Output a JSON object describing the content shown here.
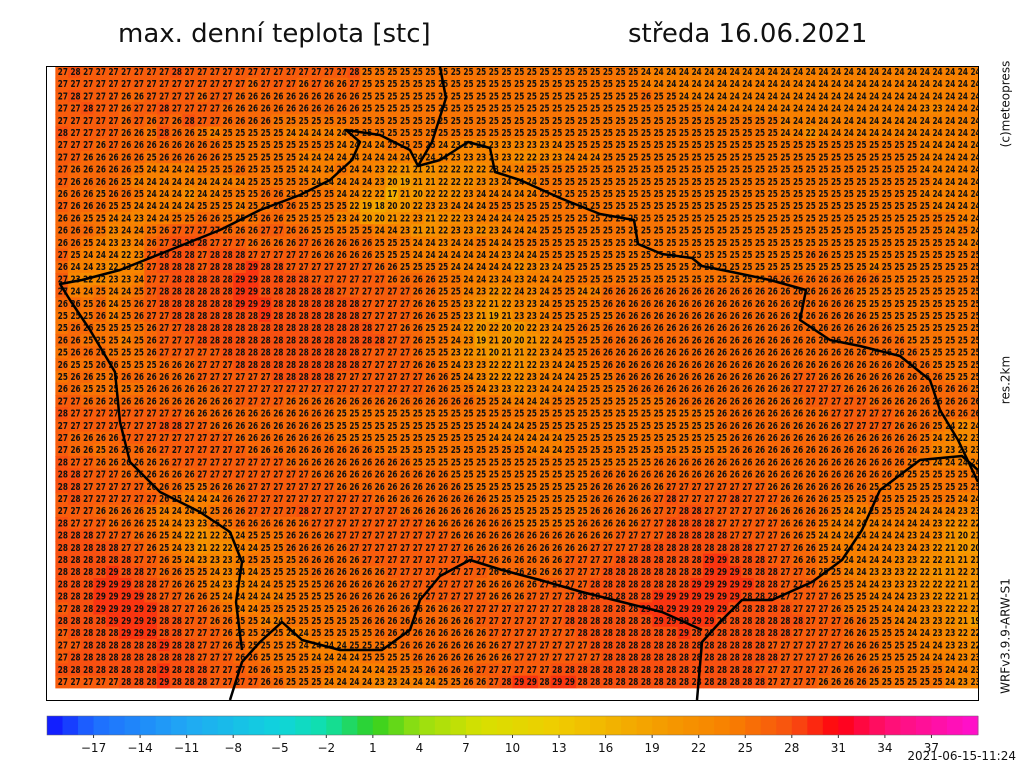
{
  "header": {
    "title": "max. denní teplota [stc]",
    "date": "středa 16.06.2021"
  },
  "side_labels": {
    "copyright": "(c)meteopress",
    "resolution": "res.2km",
    "model": "WRFv3.9.9-ARW-S1"
  },
  "timestamp": "2021-06-15-11:24",
  "colorbar": {
    "lim": [
      -20,
      40
    ],
    "ticks": [
      {
        "value": -17,
        "label": "−17"
      },
      {
        "value": -14,
        "label": "−14"
      },
      {
        "value": -11,
        "label": "−11"
      },
      {
        "value": -8,
        "label": "−8"
      },
      {
        "value": -5,
        "label": "−5"
      },
      {
        "value": -2,
        "label": "−2"
      },
      1,
      4,
      7,
      10,
      13,
      16,
      19,
      22,
      25,
      28,
      31,
      34,
      37
    ],
    "stops": [
      {
        "value": -20,
        "color": "#1010ff"
      },
      {
        "value": -17,
        "color": "#1e6cff"
      },
      {
        "value": -11,
        "color": "#20a8f4"
      },
      {
        "value": -5,
        "color": "#10d4dc"
      },
      {
        "value": -2,
        "color": "#10e0a8"
      },
      {
        "value": 1,
        "color": "#30d020"
      },
      {
        "value": 4,
        "color": "#98e010"
      },
      {
        "value": 8,
        "color": "#d8e000"
      },
      {
        "value": 13,
        "color": "#f0cc00"
      },
      {
        "value": 19,
        "color": "#f4a000"
      },
      {
        "value": 24,
        "color": "#f88000"
      },
      {
        "value": 28,
        "color": "#f85010"
      },
      {
        "value": 31,
        "color": "#ff0010"
      },
      {
        "value": 34,
        "color": "#ff1070"
      },
      {
        "value": 40,
        "color": "#ff10d0"
      }
    ]
  },
  "map": {
    "rows": [
      "27 28 27 27 27 27 27 27 27 28 27 27 27 27 27 27 27 27 27 27 27 27 27 28 25 25 25 25 25 25 25 25 25 25 25 25 25 25 25 25 25 25 25 25 25 25 24 24 24 24 24 24 24 24 24 24 24 24 24 24 24 24 24 24 24 24 24 24 24 24 24 24 24",
      "27 27 27 27 27 27 27 27 27 27 27 27 27 27 27 26 27 27 27 26 27 26 26 27 25 25 25 25 25 25 25 25 25 25 25 25 25 25 25 25 25 25 25 25 25 25 24 24 24 24 24 24 24 24 24 24 24 24 24 24 24 24 24 24 24 24 24 24 24 24 24 24 24",
      "27 28 27 27 27 26 26 27 27 27 27 26 27 27 26 26 26 26 26 26 26 26 26 26 25 25 25 25 25 25 25 25 25 25 25 25 25 25 25 25 25 25 25 25 25 25 26 25 25 24 24 24 24 24 24 24 24 24 24 24 24 24 24 24 24 24 24 24 24 24 24 24 24",
      "27 27 28 27 27 26 27 27 28 27 27 27 27 26 26 26 26 26 26 26 26 26 26 26 25 25 25 25 25 25 25 25 25 25 25 25 25 25 25 25 25 25 25 25 25 25 25 25 25 25 25 24 24 24 24 24 24 24 24 24 24 24 24 24 24 24 24 24 23 23 24 24 24",
      "27 27 27 27 27 26 27 26 27 26 28 27 27 26 26 26 26 25 25 25 25 25 25 25 25 25 25 25 25 25 25 25 25 25 25 25 25 25 25 25 25 25 25 25 25 25 25 25 25 25 25 25 25 25 25 25 25 24 24 24 24 24 24 24 24 24 24 24 24 24 24 24 24",
      "28 27 27 27 27 26 26 25 28 26 26 25 24 25 25 25 25 25 24 24 24 24 24 25 25 25 25 25 25 25 25 25 25 25 25 25 25 25 25 25 25 25 25 25 25 25 25 25 25 25 25 25 25 25 25 25 25 24 24 22 24 24 24 24 24 24 24 24 24 24 24 24 24",
      "27 27 27 26 27 26 26 26 26 26 26 26 26 25 25 25 25 25 25 25 25 25 24 24 24 24 25 25 25 25 24 23 23 23 23 23 23 23 23 24 25 25 25 25 25 25 25 25 25 25 25 25 25 25 25 25 25 25 25 25 25 25 25 25 25 25 25 25 24 24 24 24 24",
      "27 27 26 26 26 26 26 25 26 26 26 26 26 25 25 25 25 25 25 24 24 24 24 24 24 24 24 24 24 24 24 23 23 23 23 23 22 22 23 23 24 24 24 25 25 25 25 25 25 25 25 25 25 25 25 25 25 25 25 25 25 25 25 25 25 25 25 25 24 24 24 24 24",
      "27 26 26 26 26 26 25 24 24 24 24 25 25 25 26 25 25 25 25 24 24 24 25 24 24 23 22 21 21 21 22 22 22 22 23 24 24 25 25 25 25 25 25 25 25 25 25 25 25 25 25 25 25 25 25 25 25 25 25 25 25 25 25 25 25 25 25 25 24 24 24 24 24",
      "27 26 26 26 26 25 24 24 24 24 24 24 24 24 24 25 25 25 25 25 24 24 24 24 24 23 20 19 21 21 22 22 22 23 23 24 24 24 25 25 25 25 25 25 25 25 25 25 25 25 25 25 25 25 25 25 25 25 25 25 25 25 25 25 25 25 25 25 25 24 24 24 24",
      "26 26 26 25 26 26 25 24 24 24 22 24 24 25 25 25 26 26 25 25 25 25 24 24 22 22 17 21 20 22 22 22 23 24 24 24 24 24 25 25 25 25 25 25 25 25 25 25 25 25 25 25 25 25 25 25 25 25 25 25 25 25 25 25 25 25 25 25 24 24 24 24 24",
      "27 26 26 26 25 25 24 24 24 24 24 25 25 25 24 25 25 26 26 25 25 25 25 22 19 18 20 20 22 23 23 24 24 24 25 25 25 25 25 25 25 25 25 25 25 25 25 25 25 25 25 25 25 25 25 25 25 25 25 25 25 25 25 25 25 25 25 25 25 24 24 24 24",
      "26 26 25 25 24 24 23 24 24 25 25 26 26 25 25 25 26 26 25 25 25 25 23 24 20 20 21 22 23 21 22 22 23 24 24 24 24 25 25 25 25 25 25 25 25 25 25 25 25 25 25 25 25 25 25 25 25 25 25 25 25 25 25 25 25 25 25 25 25 25 25 24 24",
      "26 26 26 25 23 24 24 25 26 27 27 27 27 26 26 26 27 27 26 26 25 25 25 25 25 24 24 23 21 21 22 23 23 22 23 24 24 24 25 25 25 25 25 25 25 25 25 25 25 25 25 25 25 25 25 25 25 25 25 25 25 25 25 25 25 25 25 25 25 25 24 25 24",
      "26 26 25 24 23 23 24 26 27 28 28 28 27 27 27 26 26 26 26 27 26 26 26 26 26 25 25 25 24 24 23 24 24 25 24 24 25 25 25 25 25 25 25 25 25 25 25 25 25 25 25 25 25 25 25 25 25 25 25 25 25 25 25 25 25 25 25 25 25 25 25 24 24",
      "27 25 24 24 24 22 23 27 28 28 28 27 28 28 28 27 27 27 27 27 26 26 26 26 26 25 25 25 24 24 24 24 24 24 24 23 24 24 25 25 25 25 25 25 25 25 25 25 25 25 25 25 25 25 25 25 25 25 25 26 26 25 25 25 25 25 25 25 25 25 25 25 25",
      "26 24 24 23 22 23 23 27 28 28 28 27 28 28 28 29 28 28 27 27 27 27 27 27 27 26 26 25 25 25 25 24 24 24 24 24 22 23 23 24 25 25 25 25 25 25 25 25 25 25 25 25 25 25 25 25 25 25 25 25 25 25 25 25 24 25 25 25 25 25 25 25 25",
      "27 23 22 22 23 23 24 27 27 28 28 28 28 28 29 29 28 28 28 28 27 27 27 27 27 27 26 26 26 26 25 25 24 24 23 24 23 24 24 24 25 25 25 25 25 25 25 25 25 25 25 25 25 25 25 25 26 26 26 26 26 26 26 26 26 25 25 25 25 25 25 25 25",
      "27 24 24 25 24 24 25 27 28 28 28 28 28 28 29 29 28 28 28 28 28 28 27 27 27 27 27 27 26 26 25 25 24 23 22 22 24 23 24 25 25 24 24 26 26 26 26 26 26 26 26 26 26 26 26 26 26 26 26 26 26 26 26 25 25 25 25 25 25 25 25 25 25",
      "26 26 25 26 24 25 26 27 28 28 28 28 28 28 29 29 29 28 28 28 28 28 28 28 27 27 27 27 26 26 25 25 23 22 21 22 23 23 24 25 25 25 25 26 26 26 26 26 26 26 26 26 26 26 26 26 26 26 26 26 26 26 26 25 25 25 25 25 25 25 25 25 25",
      "25 25 25 26 24 25 26 27 27 28 28 28 28 28 28 28 29 28 28 28 28 28 28 28 27 27 27 27 26 26 25 25 23 21 19 21 23 23 24 25 25 25 25 25 26 26 26 26 26 26 26 26 26 26 26 26 26 26 26 26 26 26 26 26 25 25 25 25 25 25 25 25 25",
      "25 26 26 25 25 25 25 26 27 27 28 28 28 28 28 28 28 28 28 28 28 28 28 28 28 27 27 26 26 25 25 24 22 20 22 20 20 22 23 24 25 26 25 26 26 26 26 26 26 26 26 26 26 26 26 26 26 26 26 26 26 26 26 26 26 26 25 25 25 25 25 25 25",
      "26 26 25 25 25 24 25 26 27 27 27 28 28 28 28 28 28 28 28 28 28 28 28 28 28 28 27 27 26 25 25 24 23 19 21 20 20 21 22 24 25 25 25 26 26 26 26 26 26 26 26 26 26 26 26 26 26 26 26 26 26 26 26 26 26 26 26 25 25 25 25 25 25",
      "25 26 26 26 25 25 25 26 27 27 27 27 27 28 28 28 28 28 28 28 28 28 28 28 27 27 27 27 26 25 25 23 22 21 20 21 21 22 23 24 25 25 26 26 26 26 26 26 26 26 26 26 26 26 26 26 26 26 26 26 26 26 26 26 26 26 26 26 25 25 25 25 25",
      "26 25 25 26 26 25 25 25 26 26 26 27 27 27 28 28 28 28 28 28 28 28 28 28 27 27 27 27 26 26 25 24 23 23 22 22 21 22 23 24 24 25 25 26 26 26 26 26 26 26 26 26 26 26 26 26 26 26 26 26 26 26 26 26 26 26 26 26 26 25 25 25 25",
      "25 26 26 25 25 26 26 26 26 26 26 27 27 27 27 27 27 28 28 28 28 28 27 27 27 27 27 27 27 26 26 25 24 23 22 22 22 23 24 24 24 25 25 25 26 26 26 26 26 26 26 26 26 26 26 26 26 26 27 27 26 26 26 26 26 26 26 26 26 26 25 25 25",
      "26 26 25 25 25 25 25 26 26 26 26 26 26 27 27 27 27 27 27 27 27 27 27 27 27 27 27 27 27 26 26 25 25 24 23 23 22 23 24 24 24 25 25 25 25 26 26 26 26 26 26 26 26 26 26 26 26 26 27 27 27 27 26 26 26 26 26 26 26 26 26 26 25",
      "27 27 26 26 26 26 26 26 26 26 26 26 26 26 27 27 27 27 26 26 26 26 26 26 26 26 26 26 26 26 26 26 26 25 25 24 24 24 24 25 25 25 25 25 25 25 25 25 26 26 26 26 26 26 26 26 26 26 26 27 27 27 27 27 26 26 26 26 26 26 26 26 26",
      "28 27 27 27 27 27 27 27 27 27 26 26 26 26 26 26 26 26 26 26 26 26 25 25 25 25 25 25 25 25 25 25 25 25 25 25 25 25 25 25 25 25 25 25 25 25 25 25 25 25 25 25 26 26 26 26 26 26 26 26 26 27 27 27 27 27 26 26 26 26 26 26 26",
      "27 27 27 27 27 27 27 27 28 28 27 27 26 26 26 26 26 26 26 26 26 25 25 25 25 25 25 25 25 25 25 25 25 25 24 24 24 25 25 25 25 25 25 25 25 25 25 25 25 25 25 25 26 26 26 26 26 26 26 26 26 26 27 27 27 27 26 26 26 25 24 22 24",
      "27 26 26 26 26 27 27 27 27 27 27 27 27 27 26 26 26 26 26 26 26 26 25 25 25 25 25 25 25 25 25 25 25 25 24 24 24 24 24 24 25 25 25 25 25 25 25 25 25 25 25 25 25 26 26 26 26 26 26 26 26 26 26 26 26 26 26 26 25 24 23 22 23",
      "27 26 26 25 26 26 26 26 27 27 27 27 27 27 27 26 26 26 26 26 26 26 26 26 26 25 25 25 25 25 25 25 25 25 25 25 25 24 24 24 25 25 25 25 25 25 25 25 25 25 25 25 25 26 26 26 26 26 26 26 26 26 26 26 26 26 26 26 25 23 23 23 23",
      "28 27 27 26 26 26 26 26 26 27 27 27 27 27 27 27 27 27 26 26 26 26 26 26 26 26 26 26 25 25 25 25 25 25 25 25 25 25 25 25 25 25 25 25 25 25 25 26 26 26 26 26 26 26 26 26 26 26 26 26 26 26 26 26 26 26 26 25 25 24 24 24 24",
      "28 28 27 27 27 26 26 26 26 26 26 27 27 27 27 27 27 27 27 27 26 26 26 26 26 26 26 26 26 26 26 25 25 25 25 25 25 25 25 25 25 25 26 26 26 26 26 26 26 26 26 26 26 26 26 26 26 26 26 26 26 26 26 26 26 26 25 25 25 25 25 25 25",
      "28 28 27 27 27 27 27 26 26 26 25 25 26 26 26 27 27 27 27 27 27 27 26 26 26 26 26 26 26 26 26 26 25 25 25 25 25 25 25 25 25 25 26 26 26 26 26 26 27 27 27 27 27 27 27 27 26 26 26 26 26 26 26 26 25 25 25 25 25 25 25 25 25",
      "27 28 27 27 27 27 27 27 26 25 24 24 24 26 26 27 27 27 27 27 27 27 27 27 27 26 26 26 26 26 26 26 26 26 25 25 25 25 25 25 25 25 26 26 26 26 26 27 28 27 27 27 27 28 27 27 27 26 26 26 26 25 25 25 26 25 25 25 25 25 25 24 24",
      "27 27 27 26 26 26 26 25 24 24 24 24 25 26 26 27 27 27 27 28 27 27 27 27 27 27 27 26 26 26 26 26 26 26 26 25 25 25 25 25 25 25 26 26 26 26 26 27 27 28 28 27 27 27 27 27 26 26 26 26 26 25 24 24 25 25 25 24 24 24 24 23 23",
      "28 27 27 27 26 26 26 25 24 24 23 23 25 25 26 26 26 26 26 26 27 27 27 27 27 27 27 27 27 26 26 26 26 26 26 26 25 25 25 25 25 26 26 26 26 26 27 27 28 28 28 28 27 27 27 27 27 26 26 26 25 24 24 24 24 24 24 24 24 23 22 22 22",
      "28 28 28 27 27 27 26 26 25 24 22 21 22 23 24 25 25 25 26 26 26 26 27 27 27 27 27 27 27 27 27 26 26 26 26 26 26 26 26 26 26 26 26 26 27 27 27 27 28 28 28 28 28 27 27 27 27 26 26 25 24 24 24 24 24 24 24 23 24 23 21 20 21",
      "28 28 28 28 28 27 27 26 25 24 23 21 22 22 24 24 25 25 26 26 26 26 26 27 27 27 27 27 27 27 27 27 26 26 26 26 26 26 26 26 26 26 27 27 27 27 28 28 28 28 28 28 28 28 28 27 27 27 26 26 25 24 24 24 24 24 23 24 23 22 21 20 20",
      "28 28 28 28 28 28 27 27 26 25 24 23 23 23 24 25 25 25 25 26 26 26 26 26 27 27 27 27 27 27 27 27 27 27 26 26 26 26 26 26 27 27 27 27 28 28 28 28 28 28 28 29 29 28 28 28 27 27 26 26 25 25 24 24 24 24 23 23 22 22 21 21 21",
      "28 28 28 28 29 28 28 27 26 26 25 25 24 23 24 24 25 25 25 25 26 26 26 26 26 26 27 27 27 27 27 27 27 27 26 26 26 26 26 26 27 27 27 28 28 28 28 28 28 28 28 29 29 29 28 28 28 27 27 26 25 25 24 24 23 23 23 22 22 21 21 22 21",
      "28 28 28 29 29 29 28 28 27 26 26 25 24 23 23 24 24 25 25 25 25 26 26 26 26 26 26 27 27 27 27 27 27 26 26 26 26 26 27 27 27 27 28 28 28 28 28 28 28 28 29 29 29 29 29 28 28 27 27 27 26 25 25 24 24 23 23 23 22 22 22 21 21",
      "28 28 28 29 29 29 29 28 27 27 26 26 25 24 24 24 24 24 25 25 25 25 26 26 26 26 26 26 26 27 27 27 27 27 26 26 26 27 27 27 27 28 28 28 28 28 28 29 29 29 29 29 29 29 28 28 28 27 27 27 27 26 25 25 24 24 24 23 23 22 22 21 21",
      "27 28 28 29 29 29 29 29 28 27 27 26 26 25 24 24 25 25 25 25 25 25 25 26 26 26 26 26 26 26 26 26 27 27 27 27 27 27 27 27 28 28 28 28 28 28 29 29 29 29 29 29 29 28 28 28 28 28 27 27 27 26 25 25 25 24 24 24 23 23 22 22 21",
      "28 28 28 28 29 29 29 29 28 28 27 27 26 26 25 25 24 24 25 25 25 25 25 25 26 26 26 26 26 26 26 26 26 27 27 27 27 27 27 27 28 28 28 28 28 28 28 29 29 29 29 29 28 28 28 28 28 28 28 27 27 27 26 26 25 25 24 24 23 23 22 21 19",
      "27 28 28 28 28 29 29 29 28 28 27 27 27 26 25 25 25 25 24 24 25 25 25 25 25 26 26 26 26 26 26 26 26 26 27 27 27 27 27 27 27 28 28 28 28 28 28 28 28 29 28 28 28 28 28 28 28 28 27 27 27 27 26 26 25 25 25 24 24 23 23 22 22",
      "27 27 28 28 28 28 28 28 29 28 28 27 27 26 26 25 25 25 25 24 24 24 24 25 25 25 25 26 26 26 26 26 26 26 26 27 27 27 27 27 27 27 28 28 28 28 28 28 28 28 28 28 28 28 28 28 27 27 27 27 27 27 26 26 26 25 25 25 24 24 23 23 22",
      "27 28 28 28 28 28 28 28 28 28 28 27 27 27 26 26 25 25 25 25 24 24 24 24 25 25 25 25 26 26 26 26 26 26 26 26 27 27 27 27 27 27 27 28 28 28 28 28 28 28 28 28 28 28 28 28 28 27 27 27 27 26 26 26 25 25 25 25 24 24 24 23 23",
      "28 28 28 28 28 28 28 28 29 28 28 28 27 27 27 26 26 25 25 25 25 25 24 24 24 24 25 25 25 26 26 26 26 27 27 27 27 27 27 28 28 28 28 28 28 28 28 28 28 28 28 28 28 28 28 27 27 27 27 27 27 26 26 26 26 25 25 25 25 25 24 24 23",
      "27 27 27 27 27 28 28 28 29 28 28 28 27 27 27 27 26 26 25 25 25 24 24 24 24 23 23 24 24 24 25 25 26 26 27 28 29 29 28 29 29 28 28 28 28 28 28 28 28 28 28 28 28 28 28 28 27 27 27 27 26 26 26 26 25 25 25 25 25 25 24 23 23"
    ]
  }
}
